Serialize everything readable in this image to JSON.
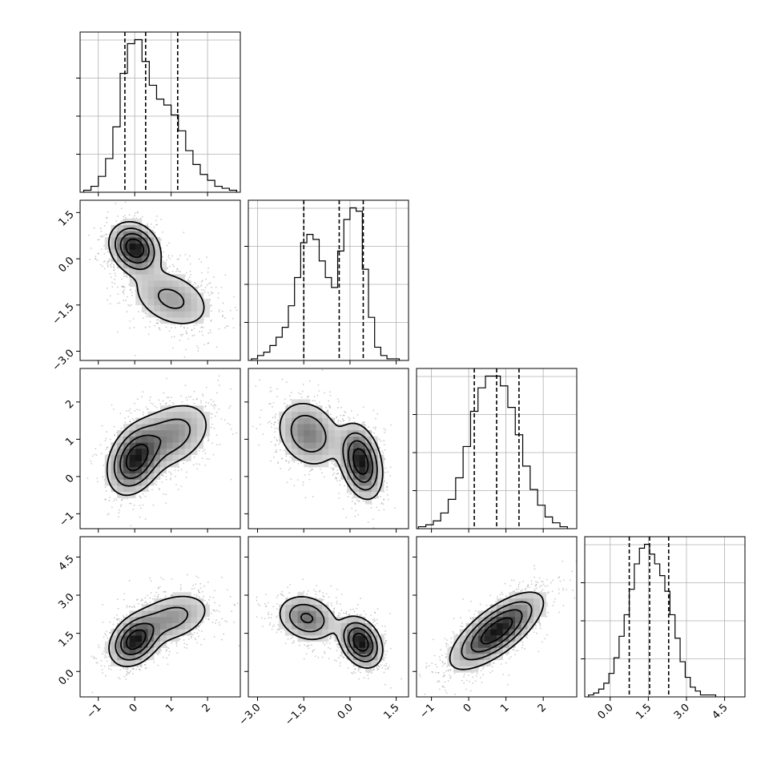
{
  "chart_data": {
    "type": "corner",
    "parameters": [
      {
        "range": [
          -1.5,
          2.9
        ],
        "ticks": [
          -1,
          0,
          1,
          2
        ],
        "tick_labels": [
          "−1",
          "0",
          "1",
          "2"
        ],
        "quantiles": [
          -0.27,
          0.3,
          1.18
        ],
        "hist_x": [
          -1.3,
          -1.1,
          -0.9,
          -0.7,
          -0.5,
          -0.3,
          -0.1,
          0.1,
          0.3,
          0.5,
          0.7,
          0.9,
          1.1,
          1.3,
          1.5,
          1.7,
          1.9,
          2.1,
          2.3,
          2.5,
          2.7
        ],
        "hist_values": [
          1,
          3,
          8,
          17,
          33,
          60,
          75,
          77,
          66,
          54,
          47,
          44,
          39,
          31,
          21,
          14,
          9,
          6,
          3,
          2,
          1
        ]
      },
      {
        "range": [
          -3.3,
          1.9
        ],
        "ticks": [
          -3.0,
          -1.5,
          0.0,
          1.5
        ],
        "tick_labels": [
          "−3.0",
          "−1.5",
          "0.0",
          "1.5"
        ],
        "quantiles": [
          -1.5,
          -0.35,
          0.43
        ],
        "hist_x": [
          -3.1,
          -2.9,
          -2.7,
          -2.5,
          -2.3,
          -2.1,
          -1.9,
          -1.7,
          -1.5,
          -1.3,
          -1.1,
          -0.9,
          -0.7,
          -0.5,
          -0.3,
          -0.1,
          0.1,
          0.3,
          0.5,
          0.7,
          0.9,
          1.1,
          1.3,
          1.5
        ],
        "hist_values": [
          1,
          3,
          5,
          9,
          14,
          20,
          33,
          50,
          71,
          76,
          73,
          60,
          50,
          44,
          66,
          85,
          92,
          90,
          55,
          26,
          8,
          3,
          1,
          1
        ]
      },
      {
        "range": [
          -1.4,
          2.9
        ],
        "ticks": [
          -1,
          0,
          1,
          2
        ],
        "tick_labels": [
          "−1",
          "0",
          "1",
          "2"
        ],
        "quantiles": [
          0.15,
          0.75,
          1.35
        ],
        "hist_x": [
          -1.25,
          -1.05,
          -0.85,
          -0.65,
          -0.45,
          -0.25,
          -0.05,
          0.15,
          0.35,
          0.55,
          0.75,
          0.95,
          1.15,
          1.35,
          1.55,
          1.75,
          1.95,
          2.15,
          2.35,
          2.55
        ],
        "hist_values": [
          1,
          2,
          4,
          8,
          15,
          26,
          42,
          60,
          72,
          78,
          78,
          73,
          62,
          48,
          32,
          20,
          12,
          6,
          3,
          1
        ]
      },
      {
        "range": [
          -1.0,
          5.3
        ],
        "ticks": [
          0.0,
          1.5,
          3.0,
          4.5
        ],
        "tick_labels": [
          "0.0",
          "1.5",
          "3.0",
          "4.5"
        ],
        "quantiles": [
          0.75,
          1.55,
          2.3
        ],
        "hist_x": [
          -0.75,
          -0.55,
          -0.35,
          -0.15,
          0.05,
          0.25,
          0.45,
          0.65,
          0.85,
          1.05,
          1.25,
          1.45,
          1.65,
          1.85,
          2.05,
          2.25,
          2.45,
          2.65,
          2.85,
          3.05,
          3.25,
          3.45,
          3.65,
          3.85,
          4.05
        ],
        "hist_values": [
          1,
          2,
          4,
          7,
          12,
          20,
          31,
          42,
          55,
          68,
          76,
          78,
          73,
          68,
          62,
          54,
          42,
          30,
          18,
          10,
          5,
          3,
          1,
          1,
          1
        ]
      }
    ],
    "pair_components": {
      "1_0": [
        {
          "mean": [
            0.0,
            0.35
          ],
          "sd": [
            0.35,
            0.42
          ],
          "rho": -0.2,
          "w": 0.55
        },
        {
          "mean": [
            1.0,
            -1.3
          ],
          "sd": [
            0.62,
            0.55
          ],
          "rho": -0.35,
          "w": 0.45
        }
      ],
      "2_0": [
        {
          "mean": [
            0.0,
            0.45
          ],
          "sd": [
            0.38,
            0.48
          ],
          "rho": 0.3,
          "w": 0.55
        },
        {
          "mean": [
            1.0,
            1.1
          ],
          "sd": [
            0.6,
            0.5
          ],
          "rho": 0.35,
          "w": 0.45
        }
      ],
      "2_1": [
        {
          "mean": [
            -1.35,
            1.15
          ],
          "sd": [
            0.55,
            0.48
          ],
          "rho": -0.2,
          "w": 0.45
        },
        {
          "mean": [
            0.35,
            0.4
          ],
          "sd": [
            0.35,
            0.5
          ],
          "rho": -0.3,
          "w": 0.55
        }
      ],
      "3_0": [
        {
          "mean": [
            0.0,
            1.2
          ],
          "sd": [
            0.35,
            0.5
          ],
          "rho": 0.3,
          "w": 0.55
        },
        {
          "mean": [
            1.0,
            2.1
          ],
          "sd": [
            0.6,
            0.55
          ],
          "rho": 0.35,
          "w": 0.45
        }
      ],
      "3_1": [
        {
          "mean": [
            -1.4,
            2.1
          ],
          "sd": [
            0.5,
            0.48
          ],
          "rho": -0.2,
          "w": 0.45
        },
        {
          "mean": [
            0.35,
            1.15
          ],
          "sd": [
            0.35,
            0.5
          ],
          "rho": -0.3,
          "w": 0.55
        }
      ],
      "3_2": [
        {
          "mean": [
            0.75,
            1.6
          ],
          "sd": [
            0.62,
            0.75
          ],
          "rho": 0.72,
          "w": 1.0
        }
      ]
    },
    "grid": true
  }
}
